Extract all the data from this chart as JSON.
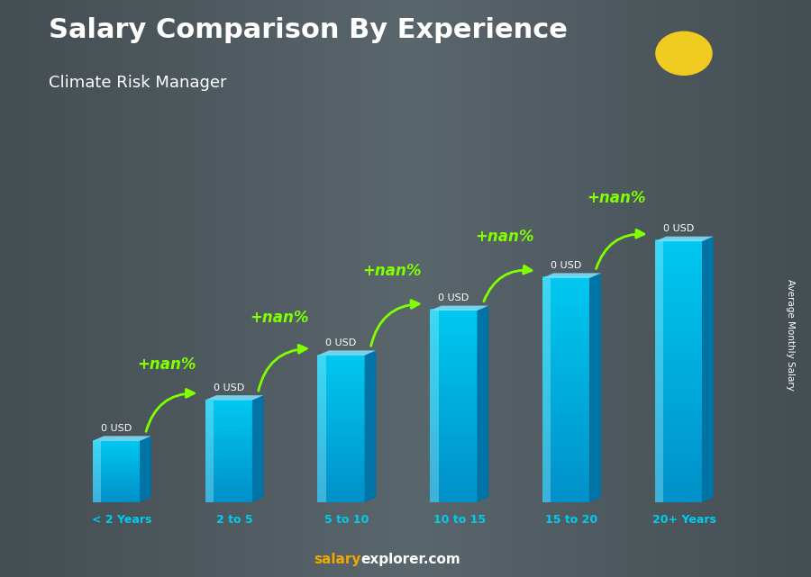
{
  "title": "Salary Comparison By Experience",
  "subtitle": "Climate Risk Manager",
  "categories": [
    "< 2 Years",
    "2 to 5",
    "5 to 10",
    "10 to 15",
    "15 to 20",
    "20+ Years"
  ],
  "values": [
    1.5,
    2.5,
    3.6,
    4.7,
    5.5,
    6.4
  ],
  "bar_label": "0 USD",
  "increase_label": "+nan%",
  "ylabel": "Average Monthly Salary",
  "footer_salary": "salary",
  "footer_explorer": "explorer.com",
  "bg_color": "#6e7878",
  "bar_front_top": "#00c8f0",
  "bar_front_bottom": "#0090c8",
  "bar_right_top": "#0090c8",
  "bar_right_bottom": "#006090",
  "bar_top_color": "#80e4ff",
  "bar_highlight": "#60d8ff",
  "title_color": "#ffffff",
  "subtitle_color": "#ffffff",
  "value_label_color": "#ffffff",
  "increase_color": "#80ff00",
  "arrow_color": "#80ff00",
  "footer_salary_color": "#f0a800",
  "footer_explorer_color": "#ffffff",
  "right_label_color": "#ffffff",
  "flag_bg": "#4ab8e0",
  "flag_circle": "#f0cc20",
  "cat_label_color": "#00ccee"
}
